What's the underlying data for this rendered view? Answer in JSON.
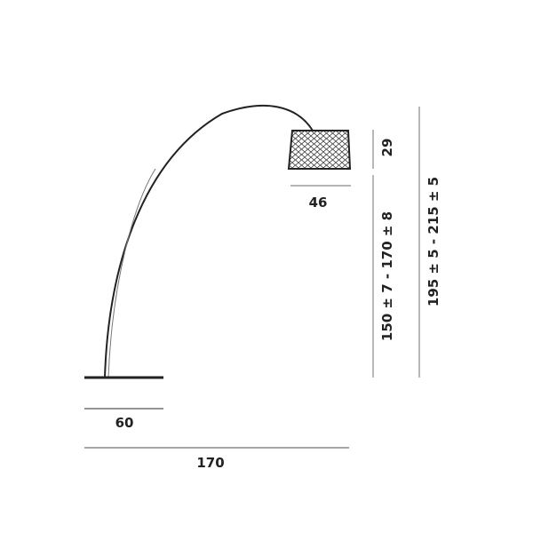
{
  "dimensions": {
    "base_width": "60",
    "total_width": "170",
    "shade_width": "46",
    "shade_height": "29",
    "shade_bottom_height": "150 ± 7 - 170 ± 8",
    "total_height": "195 ± 5 - 215 ± 5"
  },
  "colors": {
    "line": "#222222",
    "dim_line": "#888888"
  }
}
